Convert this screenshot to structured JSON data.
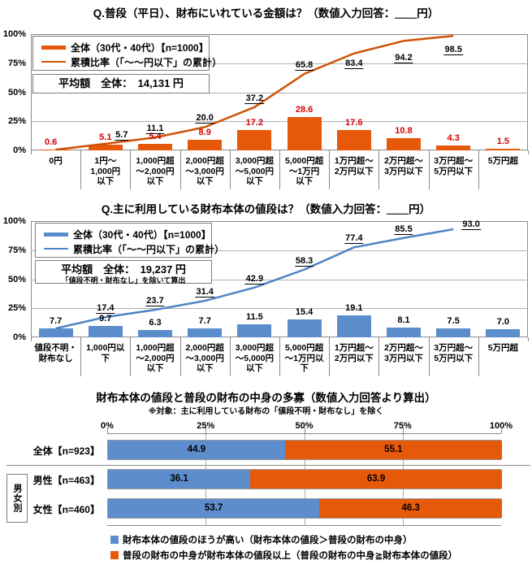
{
  "chart_data": [
    {
      "type": "bar",
      "subtype": "vertical-bars-with-cumulative-line",
      "title": "Q.普段（平日）、財布にいれている金額は？（数値入力回答：＿＿円）",
      "legend": [
        {
          "swatch": "bar-series-swatch",
          "label": "全体（30代・40代）【n=1000】"
        },
        {
          "swatch": "line-series-swatch",
          "label": "累積比率（「～～円以下」の累計）"
        }
      ],
      "average_box": {
        "line1": "平均額　全体：　14,131 円"
      },
      "yticks": [
        "100%",
        "75%",
        "50%",
        "25%",
        "0%"
      ],
      "ylim": [
        0,
        100
      ],
      "grid": true,
      "categories": [
        "0円",
        "1円～\n1,000円\n以下",
        "1,000円超\n～2,000円\n以下",
        "2,000円超\n～3,000円\n以下",
        "3,000円超\n～5,000円\n以下",
        "5,000円超\n～1万円\n以下",
        "1万円超～\n2万円以下",
        "2万円超～\n3万円以下",
        "3万円超～\n5万円以下",
        "5万円超"
      ],
      "values": [
        0.6,
        5.1,
        5.4,
        8.9,
        17.2,
        28.6,
        17.6,
        10.8,
        4.3,
        1.5
      ],
      "cumulative": {
        "values": [
          0.6,
          5.7,
          11.1,
          20.0,
          37.2,
          65.8,
          83.4,
          94.2,
          98.5
        ],
        "labels": [
          null,
          "5.7",
          "11.1",
          "20.0",
          "37.2",
          "65.8",
          "83.4",
          "94.2",
          "98.5"
        ]
      },
      "colors": {
        "bar": "#E6580A",
        "line": "#CE5309",
        "value_label": "#D60000",
        "cumulative_label": "#000000"
      }
    },
    {
      "type": "bar",
      "subtype": "vertical-bars-with-cumulative-line",
      "title": "Q.主に利用している財布本体の値段は？（数値入力回答：＿＿円）",
      "legend": [
        {
          "swatch": "bar-series-swatch",
          "label": "全体（30代・40代）【n=1000】"
        },
        {
          "swatch": "line-series-swatch",
          "label": "累積比率（「～～円以下」の累計）"
        }
      ],
      "average_box": {
        "line1": "平均額　全体：　19,237 円",
        "line2": "「値段不明・財布なし」を除いて算出"
      },
      "yticks": [
        "100%",
        "75%",
        "50%",
        "25%",
        "0%"
      ],
      "ylim": [
        0,
        100
      ],
      "grid": true,
      "categories": [
        "値段不明・\n財布なし",
        "1,000円以\n下",
        "1,000円超\n～2,000円\n以下",
        "2,000円超\n～3,000円\n以下",
        "3,000円超\n～5,000円\n以下",
        "5,000円超\n～1万円以\n下",
        "1万円超～\n2万円以下",
        "2万円超～\n3万円以下",
        "3万円超～\n5万円以下",
        "5万円超"
      ],
      "values": [
        7.7,
        9.7,
        6.3,
        7.7,
        11.5,
        15.4,
        19.1,
        8.1,
        7.5,
        7.0
      ],
      "cumulative": {
        "values": [
          7.7,
          17.4,
          23.7,
          31.4,
          42.9,
          58.3,
          77.4,
          85.5,
          93.0
        ],
        "labels": [
          null,
          "17.4",
          "23.7",
          "31.4",
          "42.9",
          "58.3",
          "77.4",
          "85.5",
          "93.0"
        ]
      },
      "colors": {
        "bar": "#5B8CCB",
        "line": "#4E84C4",
        "value_label": "#000000",
        "cumulative_label": "#000000"
      }
    },
    {
      "type": "bar",
      "subtype": "horizontal-stacked-100pct",
      "title": "財布本体の値段と普段の財布の中身の多寡（数値入力回答より算出）",
      "subtitle": "※対象：主に利用している財布の「値段不明・財布なし」を除く",
      "xticks": [
        "0%",
        "25%",
        "50%",
        "75%",
        "100%"
      ],
      "xlim": [
        0,
        100
      ],
      "group_label": "男女別",
      "rows": [
        {
          "label": "全体【n=923】",
          "values": [
            44.9,
            55.1
          ]
        },
        {
          "label": "男性【n=463】",
          "values": [
            36.1,
            63.9
          ]
        },
        {
          "label": "女性【n=460】",
          "values": [
            53.7,
            46.3
          ]
        }
      ],
      "series_colors": [
        "#5E8DCE",
        "#E6580A"
      ],
      "legend": [
        {
          "color": "#5E8DCE",
          "label": "財布本体の値段のほうが高い（財布本体の値段＞普段の財布の中身）"
        },
        {
          "color": "#E6580A",
          "label": "普段の財布の中身が財布本体の値段以上（普段の財布の中身≧財布本体の値段）"
        }
      ]
    }
  ]
}
